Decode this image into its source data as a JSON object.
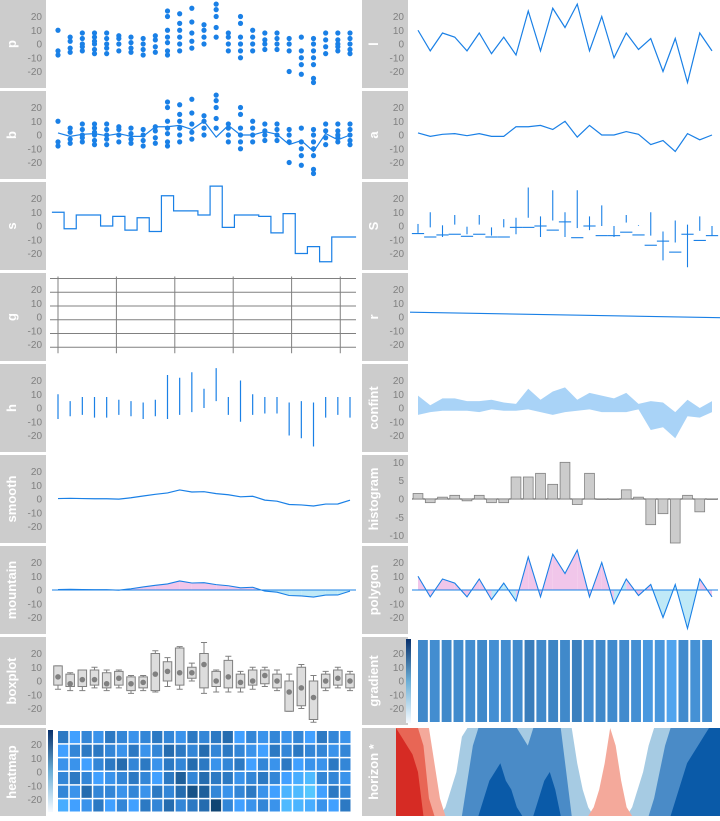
{
  "colors": {
    "strip": "#cccccc",
    "blue": "#1a80e6",
    "lightblue": "#a9d3f7",
    "pink": "#f1c6ea",
    "cyan": "#bfe9f7",
    "gray_bar": "#cccccc",
    "grid": "#808080",
    "tick": "#808080"
  },
  "chart_data": {
    "type": "panel-grid",
    "x": [
      1,
      2,
      3,
      4,
      5,
      6,
      7,
      8,
      9,
      10,
      11,
      12,
      13,
      14,
      15,
      16,
      17,
      18,
      19,
      20,
      21,
      22,
      23,
      24,
      25
    ],
    "y_ticks": [
      20,
      10,
      0,
      -10,
      -20
    ],
    "histogram_ticks": [
      10,
      5,
      0,
      -5,
      -10
    ],
    "grid_lines": [
      28,
      18,
      8,
      -2,
      -12,
      -22
    ],
    "centers": [
      1.5,
      -1,
      0.5,
      1,
      -0.5,
      1,
      -1,
      -1,
      6,
      6,
      7,
      4,
      10,
      -1.5,
      7,
      0,
      0,
      2.5,
      0.5,
      -7,
      -4,
      -12,
      1,
      -3.5,
      0
    ],
    "point_sets": [
      [
        10,
        -5,
        -8
      ],
      [
        5,
        2,
        -3,
        -6
      ],
      [
        8,
        4,
        0,
        -2,
        -5
      ],
      [
        8,
        5,
        2,
        0,
        -4,
        -7
      ],
      [
        8,
        4,
        0,
        -3,
        -7
      ],
      [
        6,
        4,
        0,
        -5
      ],
      [
        5,
        1,
        -3,
        -6
      ],
      [
        4,
        0,
        -4,
        -8
      ],
      [
        6,
        3,
        -2,
        -6
      ],
      [
        24,
        20,
        10,
        5,
        1,
        -5,
        -8
      ],
      [
        22,
        15,
        10,
        5,
        0,
        -5
      ],
      [
        26,
        16,
        8,
        2,
        -3
      ],
      [
        14,
        10,
        5,
        0
      ],
      [
        29,
        25,
        20,
        12,
        5
      ],
      [
        8,
        5,
        0,
        -5
      ],
      [
        20,
        15,
        5,
        0,
        -5,
        -10
      ],
      [
        10,
        5,
        0,
        -5
      ],
      [
        8,
        3,
        0,
        -4
      ],
      [
        8,
        4,
        0,
        -4
      ],
      [
        4,
        0,
        -5,
        -20
      ],
      [
        5,
        -5,
        -10,
        -15,
        -22
      ],
      [
        4,
        0,
        -5,
        -10,
        -15,
        -25,
        -28
      ],
      [
        8,
        3,
        -2,
        -7
      ],
      [
        8,
        3,
        0,
        -2,
        -5
      ],
      [
        8,
        4,
        0,
        -4,
        -7
      ]
    ],
    "line_values": [
      10,
      -5,
      8,
      5,
      -5,
      8,
      -7,
      5,
      -8,
      24,
      -5,
      26,
      12,
      29,
      -5,
      20,
      -10,
      8,
      -4,
      4,
      -20,
      4,
      -28,
      8,
      -5
    ],
    "step_values": [
      10,
      -2,
      8,
      8,
      0,
      7,
      -3,
      6,
      -4,
      22,
      11,
      11,
      8,
      29,
      -1,
      8,
      8,
      7,
      -5,
      9,
      -20,
      -15,
      -26,
      -8,
      -8
    ],
    "spike_values": [
      -5,
      10,
      -8,
      8,
      -6,
      8,
      -7,
      5,
      -6,
      28,
      -8,
      26,
      -8,
      26,
      -3,
      15,
      -8,
      8,
      0,
      10,
      -25,
      4,
      -30,
      7,
      -7
    ],
    "regression": {
      "start": 3.5,
      "end": -0.5
    },
    "confint": {
      "upper": [
        9,
        2,
        7,
        7,
        5,
        5,
        6,
        4,
        3,
        14,
        6,
        12,
        15,
        6,
        11,
        9,
        7,
        11,
        3,
        5,
        4,
        -3,
        6,
        0,
        5
      ],
      "lower": [
        -5,
        -3,
        -2,
        -2,
        -2,
        -3,
        -1,
        -2,
        -2,
        -1,
        -3,
        -5,
        -3,
        -2,
        -1,
        -3,
        -3,
        -3,
        -1,
        -16,
        -14,
        -22,
        -6,
        -7,
        -3
      ]
    },
    "boxes": [
      {
        "q1": -3,
        "q3": 11,
        "median": 3,
        "whisker_low": -6,
        "whisker_high": 11
      },
      {
        "q1": -4,
        "q3": 5,
        "median": -2,
        "whisker_low": -7,
        "whisker_high": 6
      },
      {
        "q1": -4,
        "q3": 8,
        "median": 1,
        "whisker_low": -7,
        "whisker_high": 8
      },
      {
        "q1": -3,
        "q3": 8,
        "median": 1,
        "whisker_low": -5,
        "whisker_high": 10
      },
      {
        "q1": -5,
        "q3": 6,
        "median": -2,
        "whisker_low": -7,
        "whisker_high": 8
      },
      {
        "q1": -3,
        "q3": 7,
        "median": 2,
        "whisker_low": -5,
        "whisker_high": 8
      },
      {
        "q1": -7,
        "q3": 3,
        "median": -2,
        "whisker_low": -9,
        "whisker_high": 4
      },
      {
        "q1": -5,
        "q3": 3,
        "median": -1,
        "whisker_low": -7,
        "whisker_high": 4
      },
      {
        "q1": -7,
        "q3": 20,
        "median": 5,
        "whisker_low": -8,
        "whisker_high": 22
      },
      {
        "q1": 0,
        "q3": 14,
        "median": 7,
        "whisker_low": -4,
        "whisker_high": 17
      },
      {
        "q1": -3,
        "q3": 24,
        "median": 6,
        "whisker_low": -6,
        "whisker_high": 25
      },
      {
        "q1": 2,
        "q3": 10,
        "median": 6,
        "whisker_low": 0,
        "whisker_high": 13
      },
      {
        "q1": -5,
        "q3": 20,
        "median": 12,
        "whisker_low": -9,
        "whisker_high": 28
      },
      {
        "q1": -4,
        "q3": 7,
        "median": 0,
        "whisker_low": -8,
        "whisker_high": 8
      },
      {
        "q1": -5,
        "q3": 15,
        "median": 3,
        "whisker_low": -8,
        "whisker_high": 18
      },
      {
        "q1": -5,
        "q3": 5,
        "median": -1,
        "whisker_low": -8,
        "whisker_high": 7
      },
      {
        "q1": -3,
        "q3": 8,
        "median": 0,
        "whisker_low": -6,
        "whisker_high": 10
      },
      {
        "q1": -2,
        "q3": 8,
        "median": 4,
        "whisker_low": -4,
        "whisker_high": 10
      },
      {
        "q1": -5,
        "q3": 5,
        "median": 0,
        "whisker_low": -7,
        "whisker_high": 8
      },
      {
        "q1": -22,
        "q3": 0,
        "median": -8,
        "whisker_low": -22,
        "whisker_high": 5
      },
      {
        "q1": -18,
        "q3": 10,
        "median": -5,
        "whisker_low": -20,
        "whisker_high": 12
      },
      {
        "q1": -28,
        "q3": 0,
        "median": -12,
        "whisker_low": -30,
        "whisker_high": 4
      },
      {
        "q1": -5,
        "q3": 5,
        "median": 0,
        "whisker_low": -7,
        "whisker_high": 7
      },
      {
        "q1": -3,
        "q3": 8,
        "median": 2,
        "whisker_low": -5,
        "whisker_high": 10
      },
      {
        "q1": -5,
        "q3": 5,
        "median": 0,
        "whisker_low": -7,
        "whisker_high": 7
      }
    ],
    "gradient_levels": [
      0.62,
      0.58,
      0.62,
      0.6,
      0.58,
      0.62,
      0.56,
      0.58,
      0.6,
      0.72,
      0.62,
      0.66,
      0.62,
      0.7,
      0.58,
      0.62,
      0.6,
      0.6,
      0.56,
      0.48,
      0.5,
      0.38,
      0.6,
      0.55,
      0.58
    ],
    "heatmap_levels": [
      [
        0.6,
        0.3,
        0.4,
        0.5,
        0.5,
        0.2
      ],
      [
        0.3,
        0.5,
        0.4,
        0.6,
        0.4,
        0.3
      ],
      [
        0.5,
        0.6,
        0.3,
        0.5,
        0.7,
        0.4
      ],
      [
        0.4,
        0.6,
        0.5,
        0.3,
        0.5,
        0.6
      ],
      [
        0.6,
        0.5,
        0.6,
        0.4,
        0.5,
        0.3
      ],
      [
        0.5,
        0.4,
        0.7,
        0.5,
        0.4,
        0.5
      ],
      [
        0.4,
        0.6,
        0.5,
        0.6,
        0.5,
        0.3
      ],
      [
        0.5,
        0.4,
        0.6,
        0.5,
        0.4,
        0.6
      ],
      [
        0.6,
        0.5,
        0.4,
        0.3,
        0.6,
        0.5
      ],
      [
        0.5,
        0.7,
        0.6,
        0.6,
        0.5,
        0.7
      ],
      [
        0.4,
        0.6,
        0.5,
        0.8,
        0.7,
        0.5
      ],
      [
        0.6,
        0.5,
        0.7,
        0.5,
        0.9,
        0.6
      ],
      [
        0.5,
        0.7,
        0.6,
        0.7,
        0.8,
        0.7
      ],
      [
        0.6,
        0.5,
        0.4,
        0.6,
        0.5,
        1.0
      ],
      [
        0.7,
        0.6,
        0.5,
        0.6,
        0.4,
        0.5
      ],
      [
        0.3,
        0.5,
        0.6,
        0.4,
        0.5,
        0.3
      ],
      [
        0.5,
        0.4,
        0.3,
        0.5,
        0.6,
        0.4
      ],
      [
        0.4,
        0.3,
        0.5,
        0.6,
        0.4,
        0.5
      ],
      [
        0.5,
        0.6,
        0.4,
        0.5,
        0.3,
        0.4
      ],
      [
        0.4,
        0.5,
        0.6,
        0.3,
        0.15,
        0.1
      ],
      [
        0.5,
        0.6,
        0.3,
        0.2,
        0.1,
        0.15
      ],
      [
        0.3,
        0.5,
        0.4,
        0.1,
        0.0,
        0.2
      ],
      [
        0.6,
        0.5,
        0.4,
        0.5,
        0.3,
        0.4
      ],
      [
        0.5,
        0.4,
        0.6,
        0.5,
        0.6,
        0.3
      ],
      [
        0.4,
        0.5,
        0.5,
        0.4,
        0.5,
        0.6
      ]
    ],
    "horizon_values": [
      -30,
      -29,
      -28,
      -27,
      -25,
      -18,
      -12,
      -6,
      -2,
      1,
      3,
      5,
      9,
      14,
      18,
      20,
      22,
      24,
      25,
      26,
      24,
      23,
      21,
      19,
      18,
      20,
      22,
      24,
      25,
      23,
      20,
      15,
      10,
      6,
      3,
      1,
      -1,
      -3,
      -6,
      -10,
      -8,
      -4,
      -1,
      1,
      3,
      5,
      8,
      12,
      15,
      18,
      20,
      22,
      24,
      26,
      27,
      28,
      29,
      30,
      30,
      31
    ],
    "panels": [
      {
        "id": "p",
        "label": "p",
        "type": "points"
      },
      {
        "id": "l",
        "label": "l",
        "type": "line"
      },
      {
        "id": "b",
        "label": "b",
        "type": "both"
      },
      {
        "id": "a",
        "label": "a",
        "type": "average"
      },
      {
        "id": "s",
        "label": "s",
        "type": "step"
      },
      {
        "id": "S",
        "label": "S",
        "type": "step-upper"
      },
      {
        "id": "g",
        "label": "g",
        "type": "grid"
      },
      {
        "id": "r",
        "label": "r",
        "type": "regression"
      },
      {
        "id": "h",
        "label": "h",
        "type": "spikes"
      },
      {
        "id": "confint",
        "label": "confint",
        "type": "confint"
      },
      {
        "id": "smooth",
        "label": "smooth",
        "type": "smooth"
      },
      {
        "id": "histogram",
        "label": "histogram",
        "type": "histogram"
      },
      {
        "id": "mountain",
        "label": "mountain",
        "type": "mountain"
      },
      {
        "id": "polygon",
        "label": "polygon",
        "type": "polygon"
      },
      {
        "id": "boxplot",
        "label": "boxplot",
        "type": "boxplot"
      },
      {
        "id": "gradient",
        "label": "gradient",
        "type": "gradient"
      },
      {
        "id": "heatmap",
        "label": "heatmap",
        "type": "heatmap"
      },
      {
        "id": "horizon",
        "label": "horizon *",
        "type": "horizon"
      }
    ]
  }
}
